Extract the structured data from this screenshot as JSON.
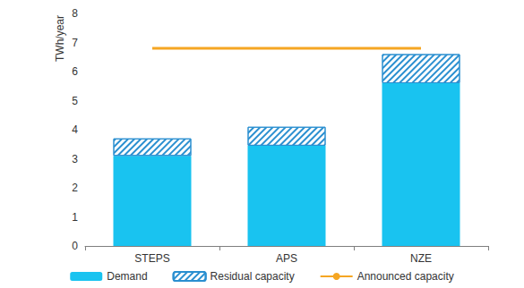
{
  "chart_data": {
    "type": "bar",
    "stacked": true,
    "y_label": "TWh/year",
    "categories": [
      "STEPS",
      "APS",
      "NZE"
    ],
    "series": [
      {
        "name": "Demand",
        "color": "#19c3f0",
        "values": [
          3.1,
          3.45,
          5.6
        ]
      },
      {
        "name": "Residual capacity",
        "color": "#2a8fd0",
        "marker": "hatch",
        "values": [
          0.6,
          0.65,
          1.0
        ]
      },
      {
        "name": "Announced capacity",
        "type": "line",
        "color": "#f5a623",
        "values": [
          6.8,
          6.8,
          6.8
        ]
      }
    ],
    "ylim": [
      0,
      8
    ],
    "yticks": [
      0,
      1,
      2,
      3,
      4,
      5,
      6,
      7,
      8
    ],
    "grid": false,
    "legend": "bottom"
  }
}
